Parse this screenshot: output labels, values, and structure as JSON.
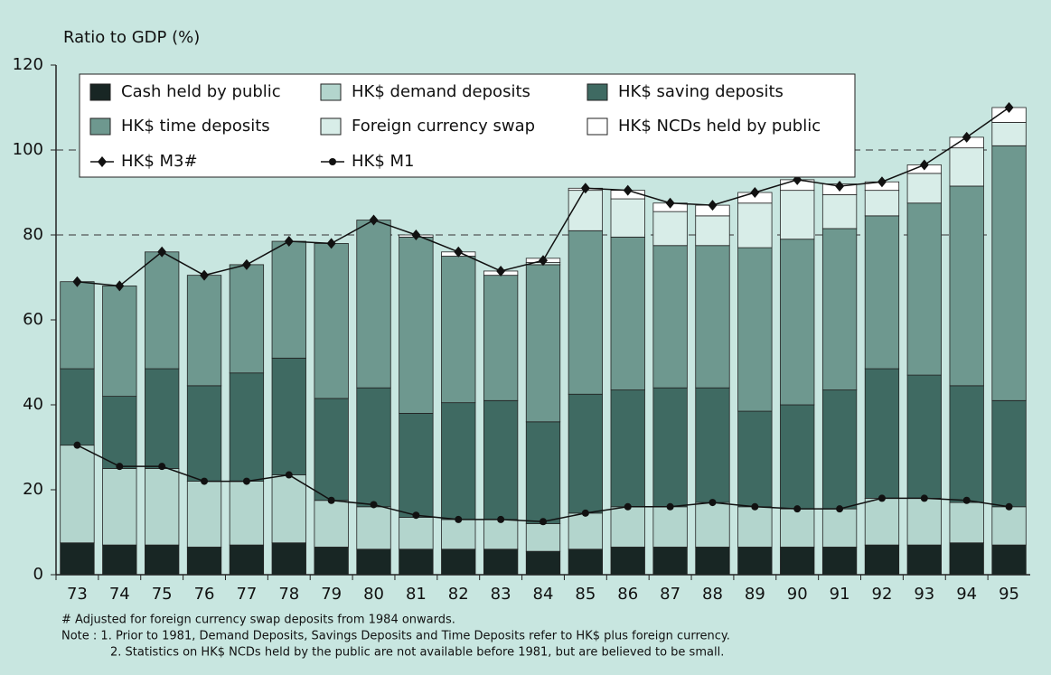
{
  "chart_data": {
    "type": "bar",
    "stacked": true,
    "y_axis_label": "Ratio to GDP (%)",
    "categories": [
      "73",
      "74",
      "75",
      "76",
      "77",
      "78",
      "79",
      "80",
      "81",
      "82",
      "83",
      "84",
      "85",
      "86",
      "87",
      "88",
      "89",
      "90",
      "91",
      "92",
      "93",
      "94",
      "95"
    ],
    "series": [
      {
        "name": "Cash held by public",
        "color": "#182624",
        "values": [
          7.5,
          7,
          7,
          6.5,
          7,
          7.5,
          6.5,
          6,
          6,
          6,
          6,
          5.5,
          6,
          6.5,
          6.5,
          6.5,
          6.5,
          6.5,
          6.5,
          7,
          7,
          7.5,
          7
        ]
      },
      {
        "name": "HK$ demand deposits",
        "color": "#b3d5cd",
        "values": [
          23,
          18,
          18,
          15.5,
          15,
          16,
          11,
          10,
          7.5,
          7,
          7,
          6.5,
          8.5,
          9.5,
          9.5,
          10.5,
          9.5,
          9,
          9,
          11,
          11,
          9.5,
          9
        ]
      },
      {
        "name": "HK$ saving deposits",
        "color": "#3f6a62",
        "values": [
          18,
          17,
          23.5,
          22.5,
          25.5,
          27.5,
          24,
          28,
          24.5,
          27.5,
          28,
          24,
          28,
          27.5,
          28,
          27,
          22.5,
          24.5,
          28,
          30.5,
          29,
          27.5,
          25
        ]
      },
      {
        "name": "HK$ time deposits",
        "color": "#6e988f",
        "values": [
          20.5,
          26,
          27.5,
          26,
          25.5,
          27.5,
          36.5,
          39.5,
          41.5,
          34.5,
          29.5,
          37,
          38.5,
          36,
          33.5,
          33.5,
          38.5,
          39,
          38,
          36,
          40.5,
          47,
          60
        ]
      },
      {
        "name": "Foreign currency swap",
        "color": "#d8ede8",
        "values": [
          null,
          null,
          null,
          null,
          null,
          null,
          null,
          null,
          null,
          null,
          null,
          0.5,
          9.5,
          9,
          8,
          7,
          10.5,
          11.5,
          8,
          6,
          7,
          9,
          5.5
        ]
      },
      {
        "name": "HK$ NCDs held by public",
        "color": "#ffffff",
        "values": [
          null,
          null,
          null,
          null,
          null,
          null,
          null,
          null,
          0.5,
          1,
          1,
          1,
          0.5,
          2,
          2,
          2.5,
          2.5,
          2.5,
          2.5,
          2,
          2,
          2.5,
          3.5
        ]
      },
      {
        "name": "HK$ M3#",
        "type": "line",
        "marker": "diamond",
        "color": "#111111",
        "values": [
          69,
          68,
          76,
          70.5,
          73,
          78.5,
          78,
          83.5,
          80,
          76,
          71.5,
          74,
          91,
          90.5,
          87.5,
          87,
          90,
          93,
          91.5,
          92.5,
          96.5,
          103,
          110
        ]
      },
      {
        "name": "HK$ M1",
        "type": "line",
        "marker": "circle",
        "color": "#111111",
        "values": [
          30.5,
          25.5,
          25.5,
          22,
          22,
          23.5,
          17.5,
          16.5,
          14,
          13,
          13,
          12.5,
          14.5,
          16,
          16,
          17,
          16,
          15.5,
          15.5,
          18,
          18,
          17.5,
          16
        ]
      }
    ],
    "ylim": [
      0,
      120
    ],
    "yticks": [
      0,
      20,
      40,
      60,
      80,
      100,
      120
    ],
    "reference_lines": [
      80,
      100
    ],
    "notes": [
      "# Adjusted for foreign currency swap deposits from 1984 onwards.",
      "Note :  1.  Prior to 1981, Demand Deposits, Savings Deposits and Time Deposits refer to HK$ plus foreign currency.",
      "2.  Statistics on HK$ NCDs held by the public are not available before 1981, but are believed to be small."
    ]
  }
}
